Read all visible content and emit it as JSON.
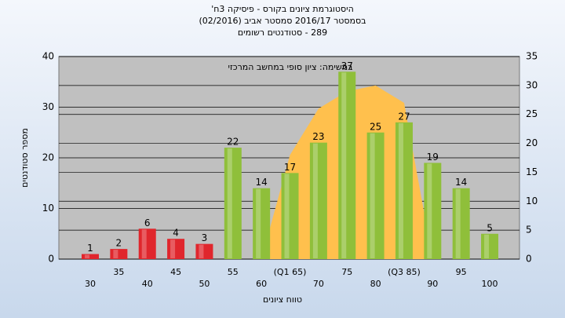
{
  "chart_data": {
    "type": "bar",
    "title": [
      "היסטוגרמת ציונים בקורס - פיסיקה 3ח'",
      "בסמסטר 2016/17 סמסטר אביב (02/2016)",
      "289 - סטודנטים רשומים"
    ],
    "subtitle": "במשימה: ציון סופי במחשב המרכזי",
    "xlabel": "טווח ציונים",
    "ylabel": "מספר סטודנטים",
    "categories": [
      "30",
      "35",
      "40",
      "45",
      "50",
      "55",
      "60",
      "(Q1 65)",
      "70",
      "75",
      "80",
      "(Q3 85)",
      "90",
      "95",
      "100"
    ],
    "values": [
      1,
      2,
      6,
      4,
      3,
      22,
      14,
      17,
      23,
      37,
      25,
      27,
      19,
      14,
      5
    ],
    "colors": [
      "#e0262c",
      "#e0262c",
      "#e0262c",
      "#e0262c",
      "#e0262c",
      "#8fbf3a",
      "#8fbf3a",
      "#8fbf3a",
      "#8fbf3a",
      "#8fbf3a",
      "#8fbf3a",
      "#8fbf3a",
      "#8fbf3a",
      "#8fbf3a",
      "#8fbf3a"
    ],
    "area": {
      "axis": "y2",
      "color": "#ffc04d",
      "values": [
        null,
        null,
        null,
        null,
        null,
        null,
        0,
        18,
        26,
        29,
        30,
        27,
        0,
        null,
        null
      ]
    },
    "ylim": [
      0,
      40
    ],
    "yticks": [
      0,
      10,
      20,
      30,
      40
    ],
    "y2lim": [
      0,
      35
    ],
    "y2ticks": [
      0,
      5,
      10,
      15,
      20,
      25,
      30,
      35
    ],
    "grid": true
  }
}
